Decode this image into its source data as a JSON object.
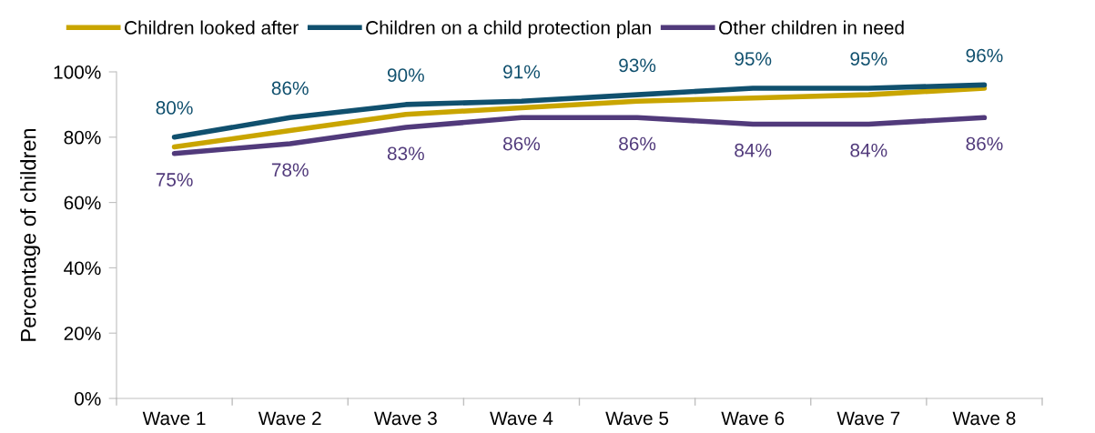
{
  "chart_data": {
    "type": "line",
    "ylabel": "Percentage of children",
    "categories": [
      "Wave 1",
      "Wave 2",
      "Wave 3",
      "Wave 4",
      "Wave 5",
      "Wave 6",
      "Wave 7",
      "Wave 8"
    ],
    "series": [
      {
        "name": "Children looked after",
        "color": "#c9a500",
        "values": [
          77,
          82,
          87,
          89,
          91,
          92,
          93,
          95
        ]
      },
      {
        "name": "Children on a child protection plan",
        "color": "#10506e",
        "values": [
          80,
          86,
          90,
          91,
          93,
          95,
          95,
          96
        ],
        "value_labels": [
          "80%",
          "86%",
          "90%",
          "91%",
          "93%",
          "95%",
          "95%",
          "96%"
        ]
      },
      {
        "name": "Other children in need",
        "color": "#513a7b",
        "values": [
          75,
          78,
          83,
          86,
          86,
          84,
          84,
          86
        ],
        "value_labels": [
          "75%",
          "78%",
          "83%",
          "86%",
          "86%",
          "84%",
          "84%",
          "86%"
        ]
      }
    ],
    "ylim": [
      0,
      100
    ],
    "yticks": [
      {
        "value": 0,
        "label": "0%"
      },
      {
        "value": 20,
        "label": "20%"
      },
      {
        "value": 40,
        "label": "40%"
      },
      {
        "value": 60,
        "label": "60%"
      },
      {
        "value": 80,
        "label": "80%"
      },
      {
        "value": 100,
        "label": "100%"
      }
    ],
    "grid": false,
    "legend": "top",
    "marker": "none",
    "line_style": "solid"
  }
}
